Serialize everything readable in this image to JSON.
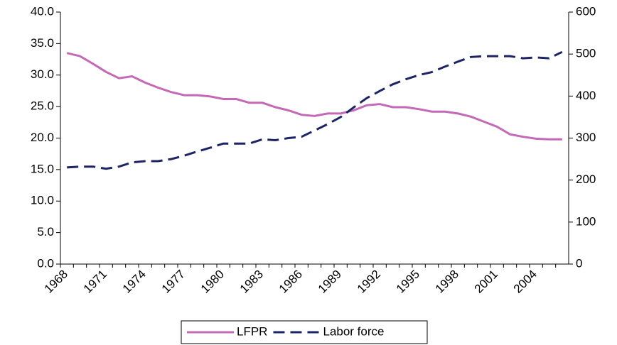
{
  "chart_data": {
    "type": "line",
    "categories": [
      "1968",
      null,
      null,
      "1971",
      null,
      null,
      "1974",
      null,
      null,
      "1977",
      null,
      null,
      "1980",
      null,
      null,
      "1983",
      null,
      null,
      "1986",
      null,
      null,
      "1989",
      null,
      null,
      "1992",
      null,
      null,
      "1995",
      null,
      null,
      "1998",
      null,
      null,
      "2001",
      null,
      null,
      "2004",
      null,
      null
    ],
    "series": [
      {
        "name": "LFPR",
        "color": "#c468b8",
        "axis": "y",
        "values": [
          33.5,
          33.0,
          31.8,
          30.5,
          29.5,
          29.8,
          28.8,
          28.0,
          27.3,
          26.8,
          26.8,
          26.6,
          26.2,
          26.2,
          25.6,
          25.6,
          24.9,
          24.4,
          23.7,
          23.5,
          23.9,
          23.9,
          24.4,
          25.2,
          25.4,
          24.9,
          24.9,
          24.6,
          24.2,
          24.2,
          23.9,
          23.4,
          22.6,
          21.8,
          20.6,
          20.2,
          19.9,
          19.8,
          19.8
        ]
      },
      {
        "name": "Labor force",
        "color": "#1c2466",
        "axis": "y2",
        "dashed": true,
        "values": [
          230,
          232,
          232,
          227,
          232,
          242,
          245,
          245,
          250,
          258,
          268,
          277,
          287,
          287,
          287,
          297,
          295,
          300,
          303,
          318,
          333,
          350,
          373,
          395,
          412,
          428,
          440,
          450,
          457,
          470,
          482,
          493,
          495,
          495,
          495,
          490,
          492,
          490,
          505
        ]
      }
    ],
    "ylim": [
      0,
      40
    ],
    "yticks": [
      {
        "value": 0,
        "label": "0.0"
      },
      {
        "value": 5,
        "label": "5.0"
      },
      {
        "value": 10,
        "label": "10.0"
      },
      {
        "value": 15,
        "label": "15.0"
      },
      {
        "value": 20,
        "label": "20.0"
      },
      {
        "value": 25,
        "label": "25.0"
      },
      {
        "value": 30,
        "label": "30.0"
      },
      {
        "value": 35,
        "label": "35.0"
      },
      {
        "value": 40,
        "label": "40.0"
      }
    ],
    "y2lim": [
      0,
      600
    ],
    "y2ticks": [
      0,
      100,
      200,
      300,
      400,
      500,
      600
    ],
    "grid": false,
    "legend": "bottom"
  }
}
